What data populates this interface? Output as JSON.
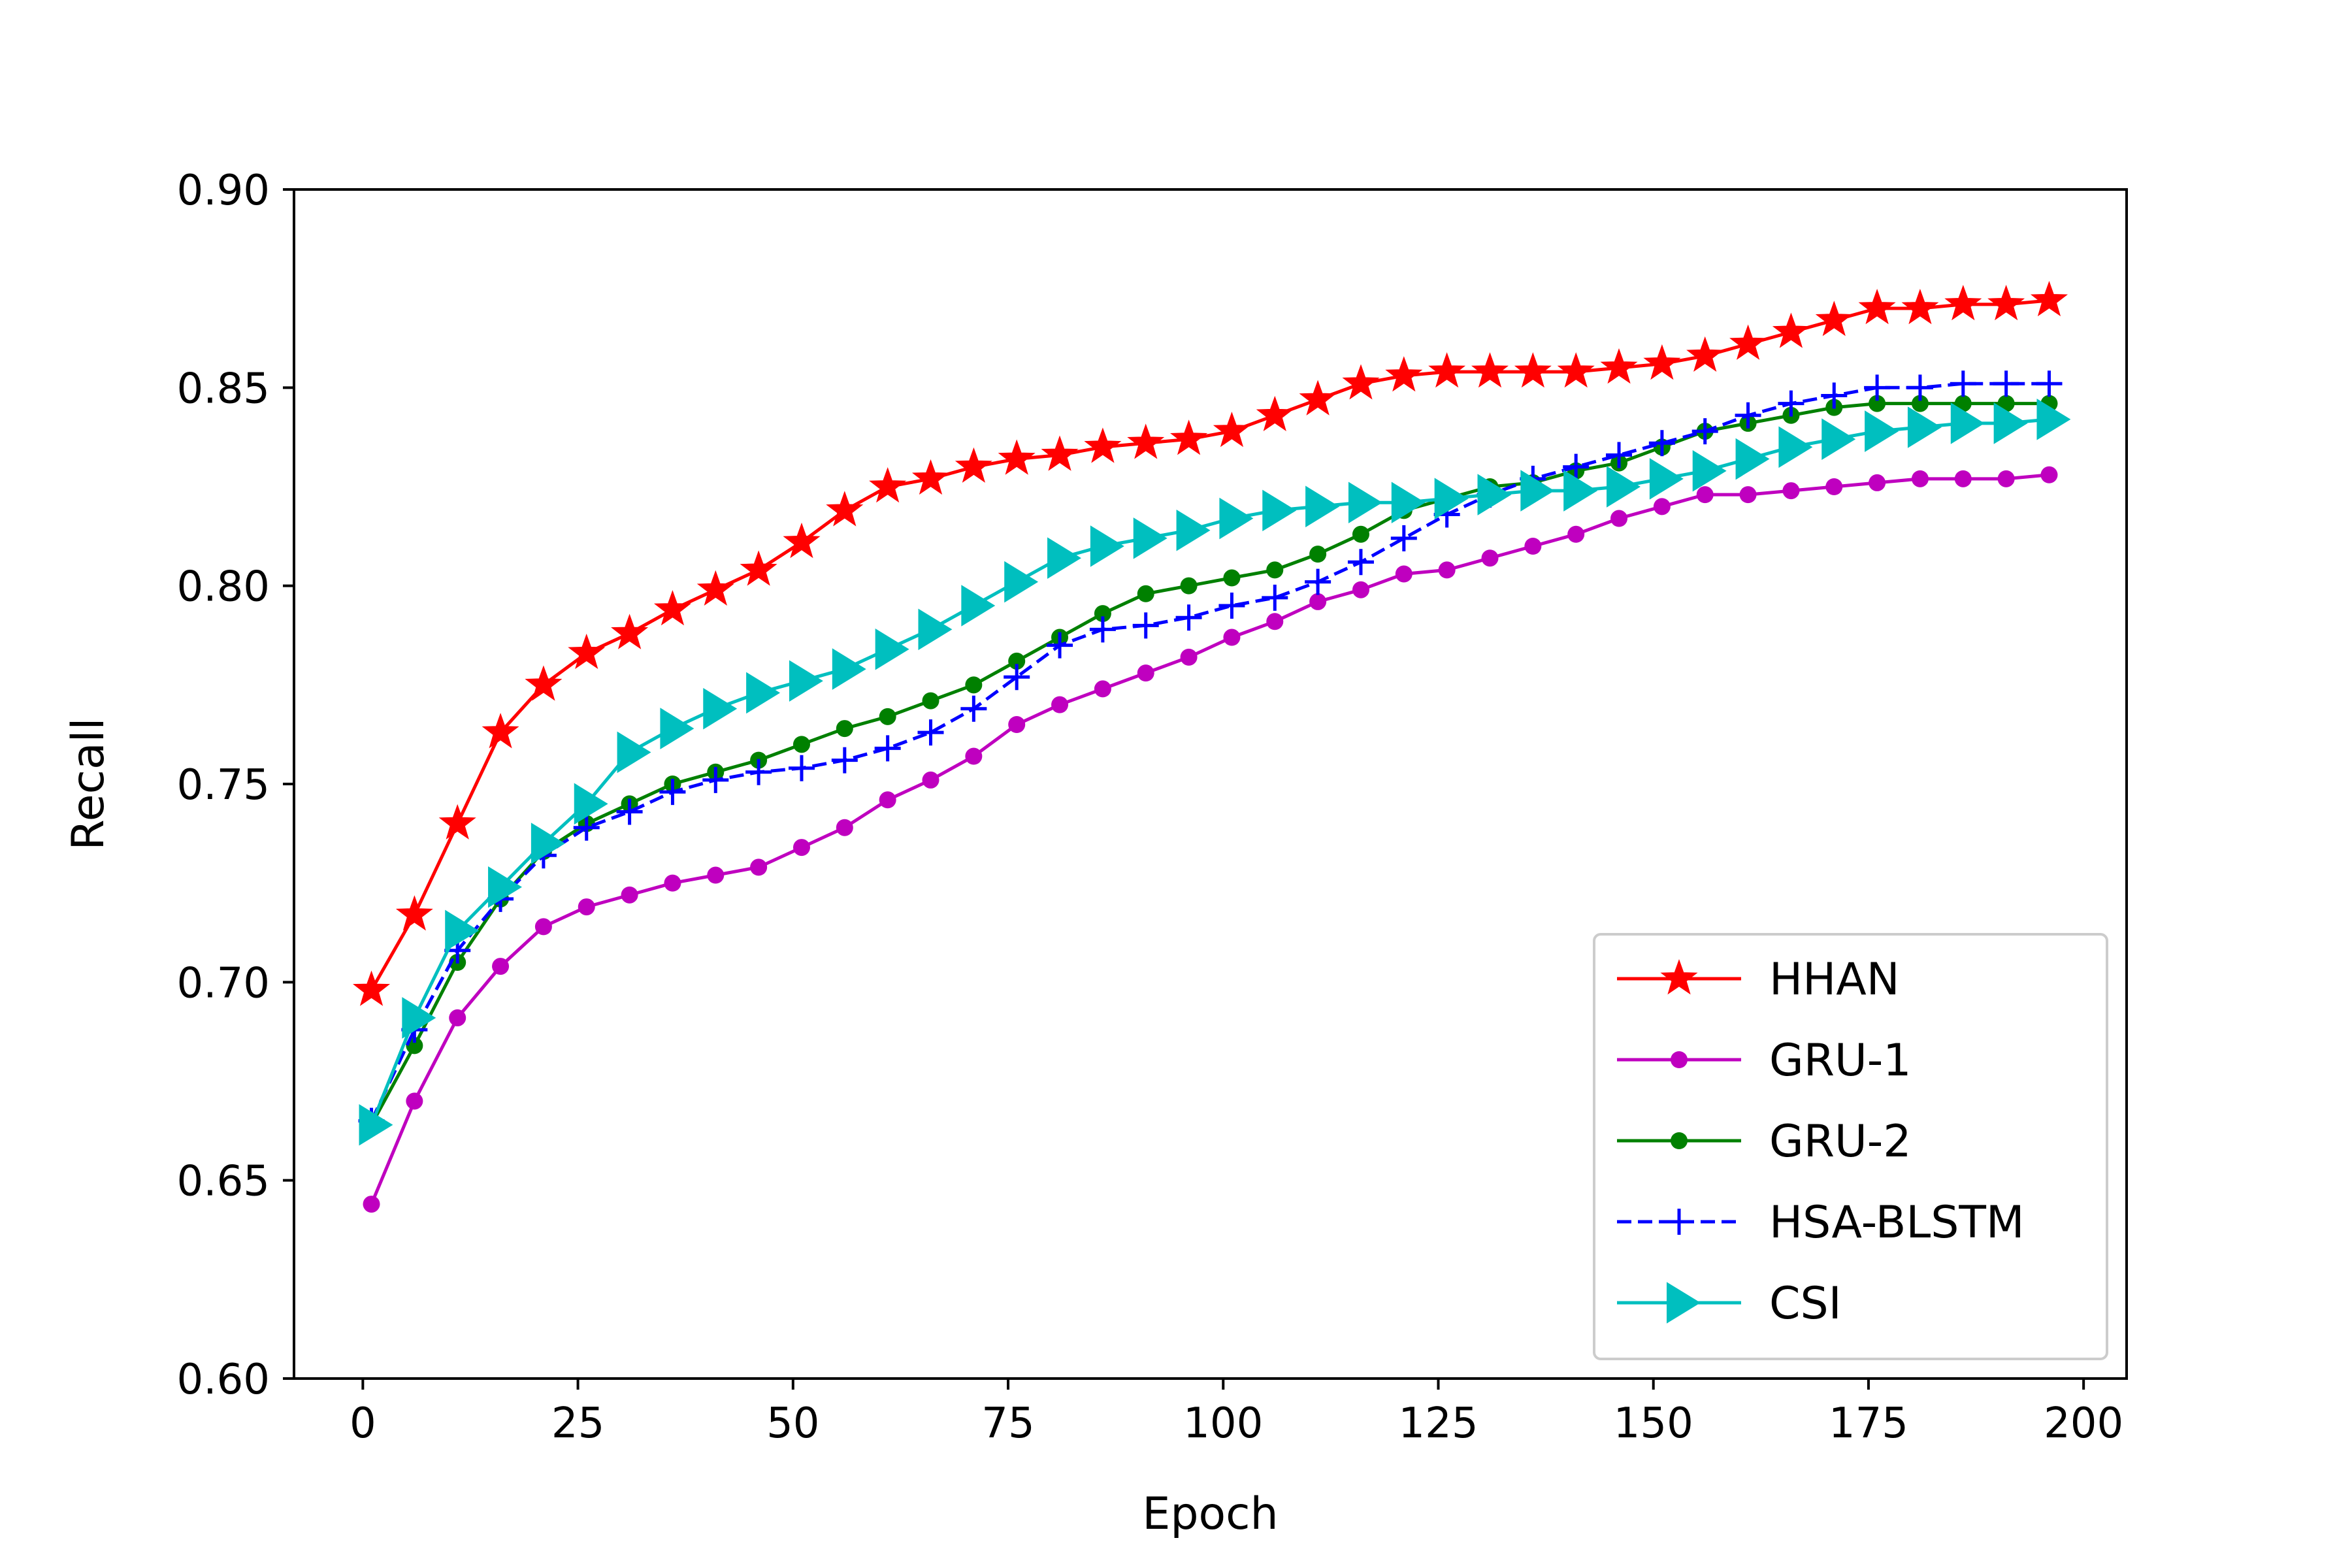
{
  "chart_data": {
    "type": "line",
    "title": "",
    "xlabel": "Epoch",
    "ylabel": "Recall",
    "xlim": [
      -8,
      205
    ],
    "ylim": [
      0.6,
      0.9
    ],
    "xticks": [
      0,
      25,
      50,
      75,
      100,
      125,
      150,
      175,
      200
    ],
    "xtick_labels": [
      "0",
      "25",
      "50",
      "75",
      "100",
      "125",
      "150",
      "175",
      "200"
    ],
    "yticks": [
      0.6,
      0.65,
      0.7,
      0.75,
      0.8,
      0.85,
      0.9
    ],
    "ytick_labels": [
      "0.60",
      "0.65",
      "0.70",
      "0.75",
      "0.80",
      "0.85",
      "0.90"
    ],
    "grid": false,
    "legend_position": "lower-right",
    "x": [
      1,
      6,
      11,
      16,
      21,
      26,
      31,
      36,
      41,
      46,
      51,
      56,
      61,
      66,
      71,
      76,
      81,
      86,
      91,
      96,
      101,
      106,
      111,
      116,
      121,
      126,
      131,
      136,
      141,
      146,
      151,
      156,
      161,
      166,
      171,
      176,
      181,
      186,
      191,
      196
    ],
    "series": [
      {
        "name": "HHAN",
        "color": "#ff0000",
        "marker": "star",
        "linestyle": "solid",
        "values": [
          0.698,
          0.717,
          0.74,
          0.763,
          0.775,
          0.783,
          0.788,
          0.794,
          0.799,
          0.804,
          0.811,
          0.819,
          0.825,
          0.827,
          0.83,
          0.832,
          0.833,
          0.835,
          0.836,
          0.837,
          0.839,
          0.843,
          0.847,
          0.851,
          0.853,
          0.854,
          0.854,
          0.854,
          0.854,
          0.855,
          0.856,
          0.858,
          0.861,
          0.864,
          0.867,
          0.87,
          0.87,
          0.871,
          0.871,
          0.872
        ]
      },
      {
        "name": "GRU-1",
        "color": "#bf00bf",
        "marker": "dot",
        "linestyle": "solid",
        "values": [
          0.644,
          0.67,
          0.691,
          0.704,
          0.714,
          0.719,
          0.722,
          0.725,
          0.727,
          0.729,
          0.734,
          0.739,
          0.746,
          0.751,
          0.757,
          0.765,
          0.77,
          0.774,
          0.778,
          0.782,
          0.787,
          0.791,
          0.796,
          0.799,
          0.803,
          0.804,
          0.807,
          0.81,
          0.813,
          0.817,
          0.82,
          0.823,
          0.823,
          0.824,
          0.825,
          0.826,
          0.827,
          0.827,
          0.827,
          0.828
        ]
      },
      {
        "name": "GRU-2",
        "color": "#008000",
        "marker": "dot",
        "linestyle": "solid",
        "values": [
          0.664,
          0.684,
          0.705,
          0.721,
          0.733,
          0.74,
          0.745,
          0.75,
          0.753,
          0.756,
          0.76,
          0.764,
          0.767,
          0.771,
          0.775,
          0.781,
          0.787,
          0.793,
          0.798,
          0.8,
          0.802,
          0.804,
          0.808,
          0.813,
          0.819,
          0.822,
          0.825,
          0.826,
          0.829,
          0.831,
          0.835,
          0.839,
          0.841,
          0.843,
          0.845,
          0.846,
          0.846,
          0.846,
          0.846,
          0.846
        ]
      },
      {
        "name": "HSA-BLSTM",
        "color": "#0000ff",
        "marker": "plus",
        "linestyle": "dashed",
        "values": [
          0.665,
          0.688,
          0.708,
          0.721,
          0.732,
          0.739,
          0.743,
          0.748,
          0.751,
          0.753,
          0.754,
          0.756,
          0.759,
          0.763,
          0.769,
          0.777,
          0.785,
          0.789,
          0.79,
          0.792,
          0.795,
          0.797,
          0.801,
          0.806,
          0.812,
          0.818,
          0.823,
          0.827,
          0.83,
          0.833,
          0.836,
          0.839,
          0.843,
          0.846,
          0.848,
          0.85,
          0.85,
          0.851,
          0.851,
          0.851
        ]
      },
      {
        "name": "CSI",
        "color": "#00bfbf",
        "marker": "triangle-right",
        "linestyle": "solid",
        "values": [
          0.664,
          0.691,
          0.713,
          0.724,
          0.735,
          0.745,
          0.758,
          0.764,
          0.769,
          0.773,
          0.776,
          0.779,
          0.784,
          0.789,
          0.795,
          0.801,
          0.807,
          0.81,
          0.812,
          0.814,
          0.817,
          0.819,
          0.82,
          0.821,
          0.821,
          0.822,
          0.823,
          0.824,
          0.824,
          0.825,
          0.827,
          0.829,
          0.832,
          0.835,
          0.837,
          0.839,
          0.84,
          0.841,
          0.841,
          0.842
        ]
      }
    ]
  }
}
